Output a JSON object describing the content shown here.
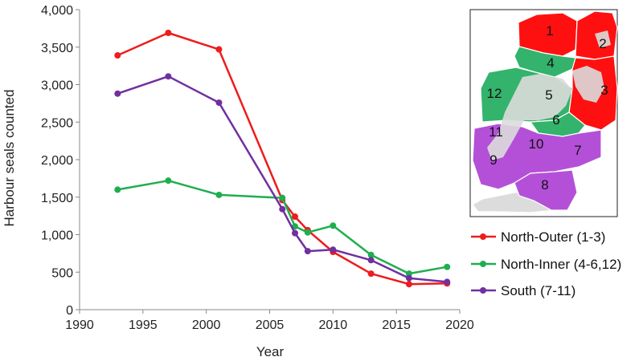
{
  "chart_data": {
    "type": "line",
    "xlabel": "Year",
    "ylabel": "Harbour seals counted",
    "xlim": [
      1990,
      2020
    ],
    "ylim": [
      0,
      4000
    ],
    "x_ticks": [
      1990,
      1995,
      2000,
      2005,
      2010,
      2015,
      2020
    ],
    "y_ticks": [
      0,
      500,
      1000,
      1500,
      2000,
      2500,
      3000,
      3500,
      4000
    ],
    "y_tick_labels": [
      "0",
      "500",
      "1,000",
      "1,500",
      "2,000",
      "2,500",
      "3,000",
      "3,500",
      "4,000"
    ],
    "grid": false,
    "legend_position": "bottom-right",
    "series": [
      {
        "name": "North-Outer (1-3)",
        "color": "#ee1c1c",
        "x": [
          1993,
          1997,
          2001,
          2006,
          2007,
          2008,
          2010,
          2013,
          2016,
          2019
        ],
        "y": [
          3390,
          3690,
          3470,
          1460,
          1240,
          1060,
          770,
          480,
          340,
          350
        ]
      },
      {
        "name": "North-Inner (4-6,12)",
        "color": "#1fae4f",
        "x": [
          1993,
          1997,
          2001,
          2006,
          2007,
          2008,
          2010,
          2013,
          2016,
          2019
        ],
        "y": [
          1600,
          1720,
          1530,
          1490,
          1110,
          1030,
          1120,
          730,
          480,
          570
        ]
      },
      {
        "name": "South (7-11)",
        "color": "#7030a0",
        "x": [
          1993,
          1997,
          2001,
          2006,
          2007,
          2008,
          2010,
          2013,
          2016,
          2019
        ],
        "y": [
          2880,
          3110,
          2760,
          1340,
          1020,
          780,
          800,
          660,
          420,
          370
        ]
      }
    ]
  },
  "map": {
    "zones": [
      {
        "label": "1",
        "group": "North-Outer (1-3)"
      },
      {
        "label": "2",
        "group": "North-Outer (1-3)"
      },
      {
        "label": "3",
        "group": "North-Outer (1-3)"
      },
      {
        "label": "4",
        "group": "North-Inner (4-6,12)"
      },
      {
        "label": "5",
        "group": "North-Inner (4-6,12)"
      },
      {
        "label": "6",
        "group": "North-Inner (4-6,12)"
      },
      {
        "label": "7",
        "group": "South (7-11)"
      },
      {
        "label": "8",
        "group": "South (7-11)"
      },
      {
        "label": "9",
        "group": "South (7-11)"
      },
      {
        "label": "10",
        "group": "South (7-11)"
      },
      {
        "label": "11",
        "group": "South (7-11)"
      },
      {
        "label": "12",
        "group": "North-Inner (4-6,12)"
      }
    ],
    "colors": {
      "north_outer": "#ff1010",
      "north_inner": "#33b36b",
      "south": "#b450d8",
      "land": "#dcdcdc"
    }
  }
}
